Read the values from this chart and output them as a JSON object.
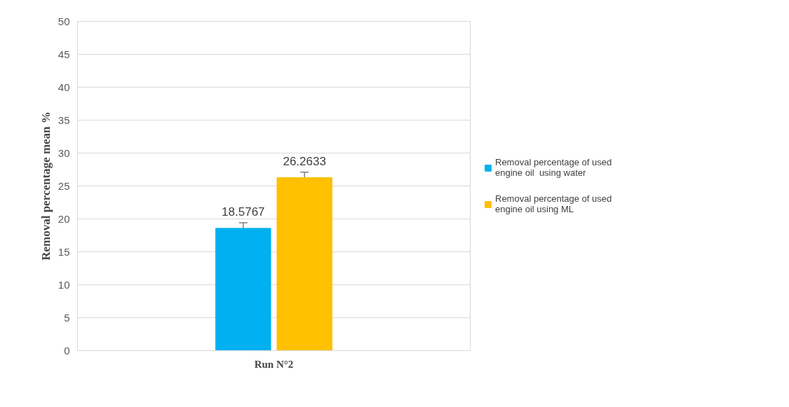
{
  "chart_data": {
    "type": "bar",
    "ylabel": "Removal percentage mean %",
    "categories": [
      "Run N°2"
    ],
    "series": [
      {
        "name": "Removal percentage of used engine oil  using water",
        "color": "#00b0f0",
        "values": [
          18.5767
        ],
        "errors": [
          0.85
        ]
      },
      {
        "name": "Removal percentage of used engine oil using ML",
        "color": "#ffc000",
        "values": [
          26.2633
        ],
        "errors": [
          0.85
        ]
      }
    ],
    "ylim": [
      0,
      50
    ],
    "yticks": [
      0,
      5,
      10,
      15,
      20,
      25,
      30,
      35,
      40,
      45,
      50
    ],
    "grid": "y",
    "legend": "right",
    "data_labels": true
  }
}
